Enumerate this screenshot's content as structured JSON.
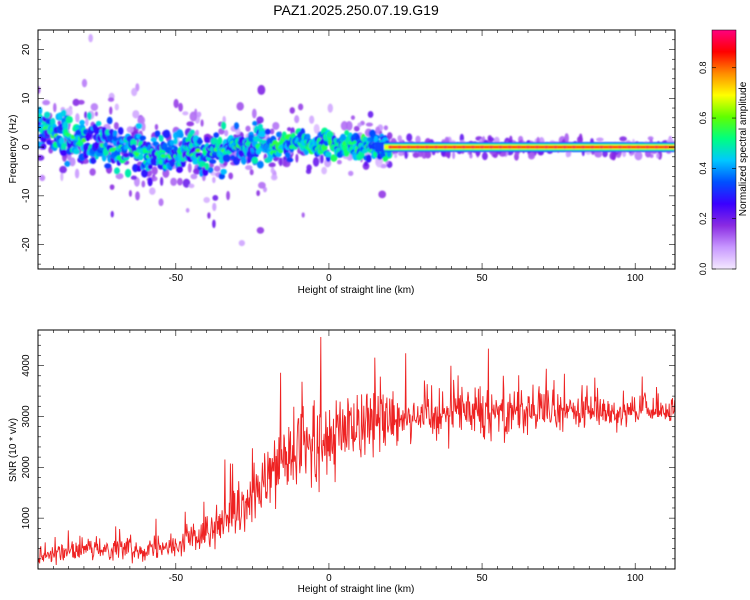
{
  "title": "PAZ1.2025.250.07.19.G19",
  "chart_data": [
    {
      "type": "heatmap",
      "xlabel": "Height of straight line (km)",
      "ylabel": "Frequency (Hz)",
      "xlim": [
        -95,
        113
      ],
      "ylim": [
        -25,
        24
      ],
      "xticks": [
        -50,
        0,
        50,
        100
      ],
      "yticks": [
        -20,
        -10,
        0,
        10,
        20
      ],
      "colorbar": {
        "label": "Normalized spectral amplitude",
        "range": [
          0.0,
          0.95
        ],
        "ticks": [
          0.0,
          0.2,
          0.4,
          0.6,
          0.8
        ],
        "tick_labels": [
          "0.0",
          "0.2",
          "0.4",
          "0.6",
          "0.8"
        ],
        "colors": [
          "#f4e9ff",
          "#c898ff",
          "#8a2be2",
          "#3a00ff",
          "#0050ff",
          "#00c8ff",
          "#00ff80",
          "#60ff00",
          "#ffff00",
          "#ff8c00",
          "#ff0000",
          "#ff007f"
        ]
      },
      "ridge": [
        {
          "x": -93,
          "f": 4
        },
        {
          "x": -85,
          "f": 2
        },
        {
          "x": -75,
          "f": 1
        },
        {
          "x": -65,
          "f": -1
        },
        {
          "x": -55,
          "f": -2
        },
        {
          "x": -45,
          "f": -1
        },
        {
          "x": -35,
          "f": -1
        },
        {
          "x": -28,
          "f": 0.5
        },
        {
          "x": -20,
          "f": 0
        },
        {
          "x": -10,
          "f": 0.8
        },
        {
          "x": 0,
          "f": 0.5
        },
        {
          "x": 10,
          "f": 0.2
        },
        {
          "x": 20,
          "f": 0
        },
        {
          "x": 113,
          "f": 0
        }
      ],
      "ridge_spread_hz": {
        "x_-95": 4,
        "x_-20": 2.5,
        "x_20": 0.6
      },
      "ridge_amplitude": {
        "x_-95": 0.35,
        "x_-20": 0.4,
        "x_0": 0.55,
        "x_20": 0.9
      }
    },
    {
      "type": "line",
      "xlabel": "Height of straight line (km)",
      "ylabel": "SNR (10 * v/v)",
      "xlim": [
        -95,
        113
      ],
      "ylim": [
        0,
        4700
      ],
      "xticks": [
        -50,
        0,
        50,
        100
      ],
      "yticks": [
        1000,
        2000,
        3000,
        4000
      ],
      "series": [
        {
          "name": "SNR",
          "color": "#ee2222",
          "x": [
            -95,
            -90,
            -80,
            -70,
            -60,
            -50,
            -45,
            -40,
            -35,
            -30,
            -25,
            -20,
            -15,
            -10,
            -5,
            0,
            5,
            10,
            15,
            20,
            30,
            40,
            50,
            60,
            70,
            80,
            90,
            100,
            113
          ],
          "mean": [
            250,
            300,
            380,
            420,
            400,
            450,
            600,
            700,
            850,
            1050,
            1300,
            1700,
            2100,
            2350,
            2400,
            2500,
            2700,
            2900,
            2950,
            3000,
            3050,
            3100,
            3150,
            3150,
            3100,
            3100,
            3100,
            3100,
            3100
          ],
          "spread": [
            120,
            150,
            180,
            200,
            200,
            220,
            280,
            320,
            380,
            450,
            500,
            600,
            750,
            800,
            750,
            750,
            700,
            650,
            600,
            550,
            500,
            500,
            500,
            480,
            420,
            380,
            300,
            250,
            220
          ],
          "peak_max": 4650
        }
      ]
    }
  ]
}
